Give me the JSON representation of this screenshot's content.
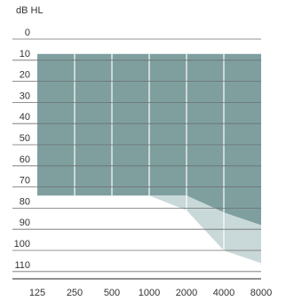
{
  "chart_data": {
    "type": "area",
    "ylabel": "dB HL",
    "x_scale": "log",
    "x_ticks": [
      125,
      250,
      500,
      1000,
      2000,
      4000,
      8000
    ],
    "x_tick_labels": [
      "125",
      "250",
      "500",
      "1000",
      "2000",
      "4000",
      "8000"
    ],
    "y_ticks": [
      0,
      10,
      20,
      30,
      40,
      50,
      60,
      70,
      80,
      90,
      100,
      110
    ],
    "y_tick_labels": [
      "0",
      "10",
      "20",
      "30",
      "40",
      "50",
      "60",
      "70",
      "80",
      "90",
      "100",
      "110"
    ],
    "ylim": [
      120,
      -5
    ],
    "y_inverted": true,
    "grid": true,
    "series": [
      {
        "color": "#7f9f9f",
        "x": [
          125,
          250,
          500,
          1000,
          2000,
          4000,
          8000
        ],
        "y_top": [
          10,
          10,
          10,
          10,
          10,
          10,
          10
        ],
        "y_bottom": [
          77,
          77,
          77,
          77,
          77,
          85,
          91
        ]
      },
      {
        "color": "#c9d8d8",
        "x": [
          125,
          250,
          500,
          1000,
          2000,
          4000,
          8000
        ],
        "y_top": [
          77,
          77,
          77,
          77,
          77,
          85,
          91
        ],
        "y_bottom": [
          77,
          77,
          77,
          77,
          84,
          103,
          109
        ]
      }
    ]
  }
}
